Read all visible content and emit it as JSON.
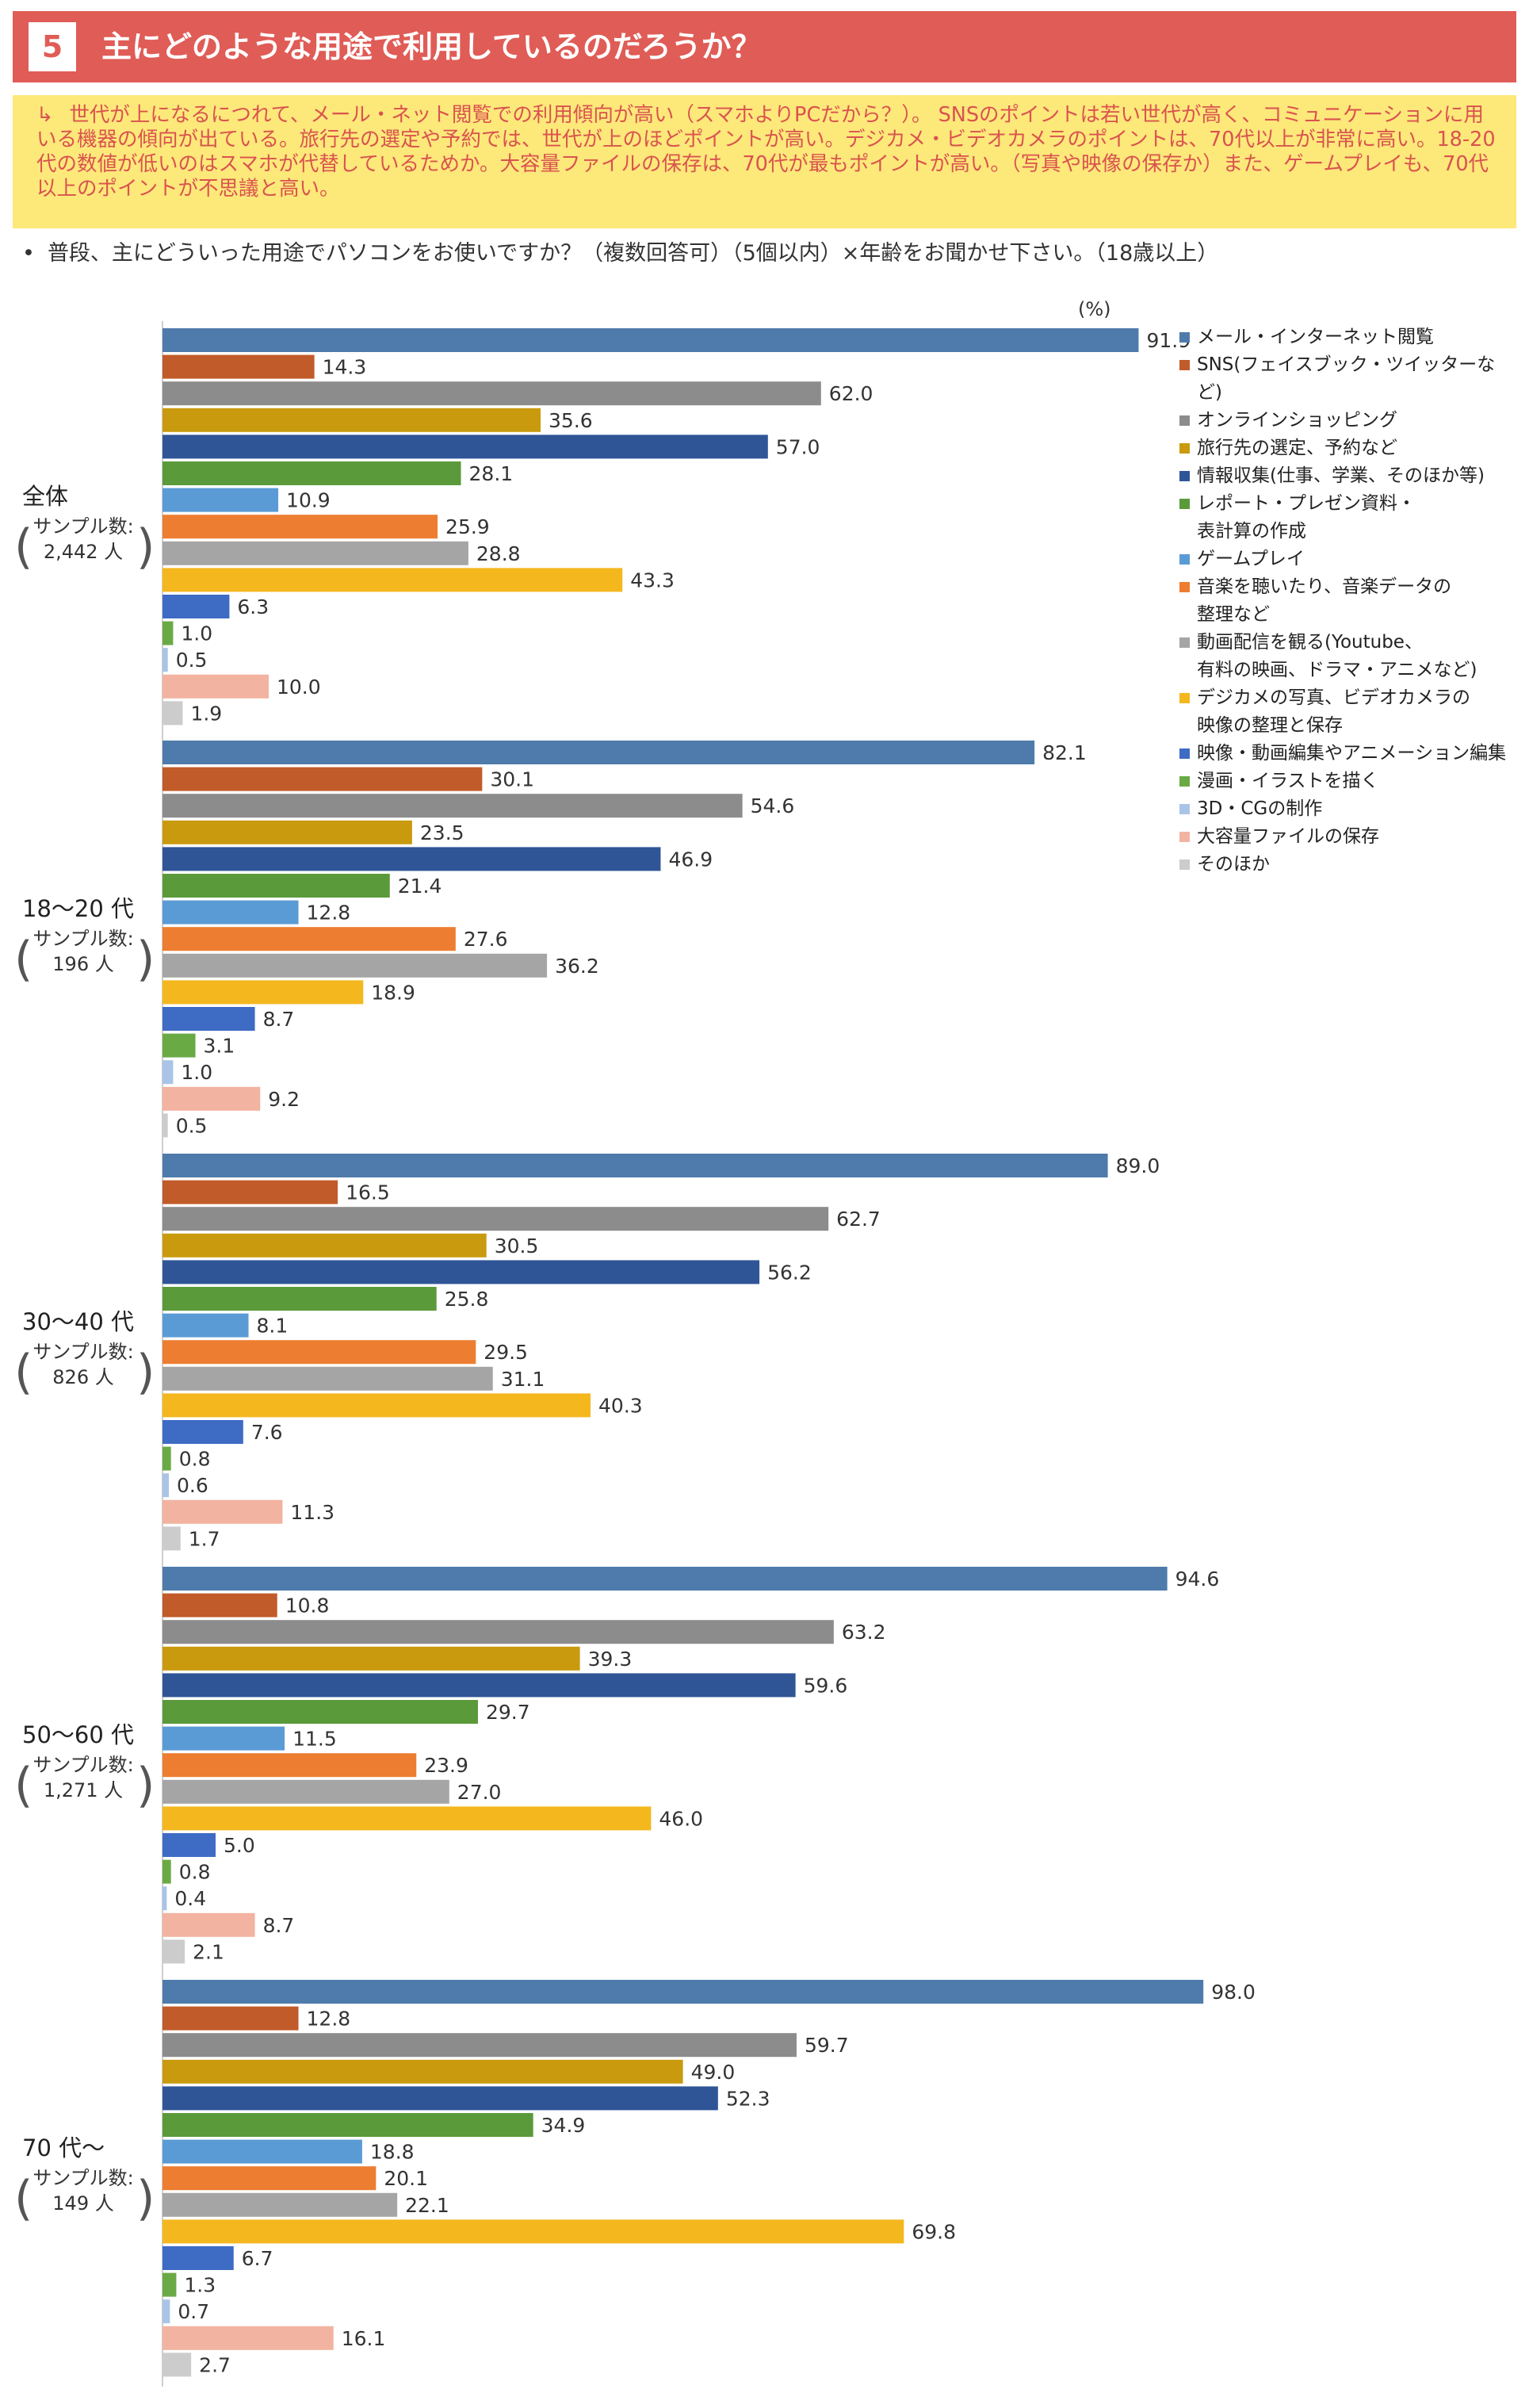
{
  "header": {
    "number": "5",
    "title": "主にどのような用途で利用しているのだろうか？"
  },
  "summary": {
    "icon": "return-arrow-icon",
    "text": "世代が上になるにつれて、メール・ネット閲覧での利用傾向が高い（スマホよりPCだから？）。 SNSのポイントは若い世代が高く、コミュニケーションに用いる機器の傾向が出ている。旅行先の選定や予約では、世代が上のほどポイントが高い。デジカメ・ビデオカメラのポイントは、70代以上が非常に高い。18-20代の数値が低いのはスマホが代替しているためか。大容量ファイルの保存は、70代が最もポイントが高い。（写真や映像の保存か）また、ゲームプレイも、70代以上のポイントが不思議と高い。"
  },
  "question": "普段、主にどういった用途でパソコンをお使いですか？（複数回答可）（5個以内）×年齢をお聞かせ下さい。（18歳以上）",
  "colors": {
    "header_bg": "#e05c56",
    "summary_bg": "#fde87a",
    "summary_text": "#d9534f"
  },
  "chart_data": {
    "type": "bar",
    "orientation": "horizontal",
    "unit_label": "(%)",
    "xlim": [
      0,
      100
    ],
    "grid": false,
    "legend_position": "right",
    "series": [
      {
        "name": "メール・インターネット閲覧",
        "color": "#4e7bab"
      },
      {
        "name": "SNS(フェイスブック・ツイッターなど)",
        "color": "#c15b29"
      },
      {
        "name": "オンラインショッピング",
        "color": "#8c8c8c"
      },
      {
        "name": "旅行先の選定、予約など",
        "color": "#c99a0d"
      },
      {
        "name": "情報収集(仕事、学業、そのほか等)",
        "color": "#2f5597"
      },
      {
        "name": "レポート・プレゼン資料・\n表計算の作成",
        "color": "#5a9a3a"
      },
      {
        "name": "ゲームプレイ",
        "color": "#5b9bd5"
      },
      {
        "name": "音楽を聴いたり、音楽データの\n整理など",
        "color": "#ed7d31"
      },
      {
        "name": "動画配信を観る(Youtube、\n有料の映画、ドラマ・アニメなど)",
        "color": "#a5a5a5"
      },
      {
        "name": "デジカメの写真、ビデオカメラの\n映像の整理と保存",
        "color": "#f4b71e"
      },
      {
        "name": "映像・動画編集やアニメーション編集",
        "color": "#3e6bc4"
      },
      {
        "name": "漫画・イラストを描く",
        "color": "#6aaa45"
      },
      {
        "name": "3D・CGの制作",
        "color": "#a9c4e6"
      },
      {
        "name": "大容量ファイルの保存",
        "color": "#f2b3a0"
      },
      {
        "name": "そのほか",
        "color": "#cccccc"
      }
    ],
    "groups": [
      {
        "label": "全体",
        "sample_label": "サンプル数:",
        "sample_count": "2,442 人",
        "values": [
          91.9,
          14.3,
          62.0,
          35.6,
          57.0,
          28.1,
          10.9,
          25.9,
          28.8,
          43.3,
          6.3,
          1.0,
          0.5,
          10.0,
          1.9
        ]
      },
      {
        "label": "18～20 代",
        "sample_label": "サンプル数:",
        "sample_count": "196 人",
        "values": [
          82.1,
          30.1,
          54.6,
          23.5,
          46.9,
          21.4,
          12.8,
          27.6,
          36.2,
          18.9,
          8.7,
          3.1,
          1.0,
          9.2,
          0.5
        ]
      },
      {
        "label": "30～40 代",
        "sample_label": "サンプル数:",
        "sample_count": "826 人",
        "values": [
          89.0,
          16.5,
          62.7,
          30.5,
          56.2,
          25.8,
          8.1,
          29.5,
          31.1,
          40.3,
          7.6,
          0.8,
          0.6,
          11.3,
          1.7
        ]
      },
      {
        "label": "50～60 代",
        "sample_label": "サンプル数:",
        "sample_count": "1,271 人",
        "values": [
          94.6,
          10.8,
          63.2,
          39.3,
          59.6,
          29.7,
          11.5,
          23.9,
          27.0,
          46.0,
          5.0,
          0.8,
          0.4,
          8.7,
          2.1
        ]
      },
      {
        "label": "70 代～",
        "sample_label": "サンプル数:",
        "sample_count": "149 人",
        "values": [
          98.0,
          12.8,
          59.7,
          49.0,
          52.3,
          34.9,
          18.8,
          20.1,
          22.1,
          69.8,
          6.7,
          1.3,
          0.7,
          16.1,
          2.7
        ]
      }
    ]
  }
}
